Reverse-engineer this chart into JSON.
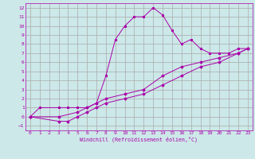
{
  "xlabel": "Windchill (Refroidissement éolien,°C)",
  "bg_color": "#cce8e8",
  "grid_color": "#aaaaaa",
  "line_color": "#aa00aa",
  "xlim": [
    -0.5,
    23.5
  ],
  "ylim": [
    -1.5,
    12.5
  ],
  "xticks": [
    0,
    1,
    2,
    3,
    4,
    5,
    6,
    7,
    8,
    9,
    10,
    11,
    12,
    13,
    14,
    15,
    16,
    17,
    18,
    19,
    20,
    21,
    22,
    23
  ],
  "yticks": [
    -1,
    0,
    1,
    2,
    3,
    4,
    5,
    6,
    7,
    8,
    9,
    10,
    11,
    12
  ],
  "line1_x": [
    0,
    1,
    3,
    4,
    5,
    6,
    7,
    8,
    9,
    10,
    11,
    12,
    13,
    14,
    15,
    16,
    17,
    18,
    19,
    20,
    21,
    22,
    23
  ],
  "line1_y": [
    0,
    1,
    1,
    1,
    1,
    1,
    1.5,
    4.5,
    8.5,
    10,
    11,
    11,
    12,
    11.2,
    9.5,
    8,
    8.5,
    7.5,
    7,
    7,
    7,
    7.5,
    7.5
  ],
  "line2_x": [
    0,
    3,
    5,
    6,
    7,
    8,
    10,
    12,
    14,
    16,
    18,
    20,
    22,
    23
  ],
  "line2_y": [
    0,
    0,
    0.5,
    1,
    1.5,
    2,
    2.5,
    3,
    4.5,
    5.5,
    6,
    6.5,
    7,
    7.5
  ],
  "line3_x": [
    0,
    3,
    4,
    5,
    6,
    7,
    8,
    10,
    12,
    14,
    16,
    18,
    20,
    22,
    23
  ],
  "line3_y": [
    0,
    -0.5,
    -0.5,
    0,
    0.5,
    1,
    1.5,
    2,
    2.5,
    3.5,
    4.5,
    5.5,
    6,
    7,
    7.5
  ]
}
